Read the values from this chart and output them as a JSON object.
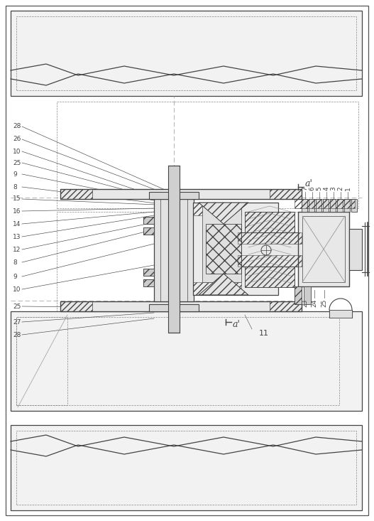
{
  "fig_width": 5.27,
  "fig_height": 7.33,
  "dpi": 100,
  "bg_color": "#ffffff",
  "line_color": "#444444",
  "dash_color": "#888888",
  "labels_left": [
    [
      "28",
      18,
      555
    ],
    [
      "26",
      18,
      537
    ],
    [
      "10",
      18,
      520
    ],
    [
      "25",
      18,
      504
    ],
    [
      "9",
      18,
      488
    ],
    [
      "8",
      18,
      470
    ],
    [
      "15",
      18,
      453
    ],
    [
      "16",
      18,
      436
    ],
    [
      "14",
      18,
      418
    ],
    [
      "13",
      18,
      400
    ],
    [
      "12",
      18,
      382
    ],
    [
      "8",
      18,
      364
    ],
    [
      "9",
      18,
      344
    ],
    [
      "10",
      18,
      326
    ],
    [
      "25",
      18,
      302
    ],
    [
      "27",
      18,
      280
    ],
    [
      "28",
      18,
      262
    ]
  ],
  "labels_right": [
    [
      "7",
      430,
      465
    ],
    [
      "6",
      440,
      465
    ],
    [
      "5",
      450,
      465
    ],
    [
      "4",
      460,
      465
    ],
    [
      "3",
      470,
      465
    ],
    [
      "2",
      480,
      465
    ],
    [
      "1",
      490,
      465
    ]
  ],
  "labels_bot_right": [
    [
      "23",
      430,
      312
    ],
    [
      "24",
      443,
      312
    ],
    [
      "25",
      457,
      312
    ]
  ],
  "label_a_top": "a'",
  "label_a_bot": "a'",
  "label_11": "11"
}
